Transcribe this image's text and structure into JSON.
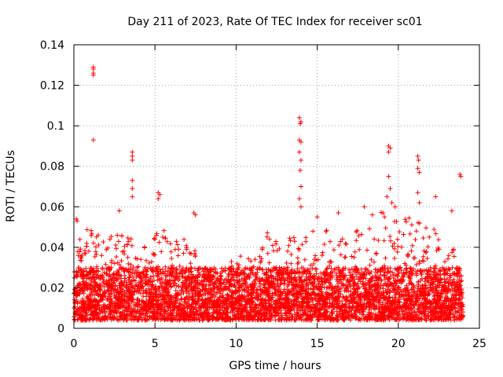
{
  "chart_data": {
    "type": "scatter",
    "title": "Day 211 of 2023, Rate Of TEC Index for receiver sc01",
    "xlabel": "GPS time / hours",
    "ylabel": "ROTI / TECUs",
    "xlim": [
      0,
      25
    ],
    "ylim": [
      0,
      0.14
    ],
    "xticks": [
      "0",
      "5",
      "10",
      "15",
      "20",
      "25"
    ],
    "yticks": [
      "0",
      "0.02",
      "0.04",
      "0.06",
      "0.08",
      "0.1",
      "0.12",
      "0.14"
    ],
    "grid": true,
    "marker": "+",
    "color": "#ff0000",
    "baseline_range": [
      0.004,
      0.03
    ],
    "notable_points": [
      {
        "x": 1.2,
        "y": 0.129
      },
      {
        "x": 1.2,
        "y": 0.128
      },
      {
        "x": 1.2,
        "y": 0.126
      },
      {
        "x": 1.2,
        "y": 0.125
      },
      {
        "x": 1.2,
        "y": 0.093
      },
      {
        "x": 0.15,
        "y": 0.054
      },
      {
        "x": 0.2,
        "y": 0.053
      },
      {
        "x": 2.8,
        "y": 0.058
      },
      {
        "x": 3.6,
        "y": 0.087
      },
      {
        "x": 3.6,
        "y": 0.085
      },
      {
        "x": 3.6,
        "y": 0.083
      },
      {
        "x": 3.6,
        "y": 0.073
      },
      {
        "x": 3.6,
        "y": 0.069
      },
      {
        "x": 3.6,
        "y": 0.065
      },
      {
        "x": 5.2,
        "y": 0.067
      },
      {
        "x": 5.3,
        "y": 0.066
      },
      {
        "x": 5.2,
        "y": 0.064
      },
      {
        "x": 7.4,
        "y": 0.057
      },
      {
        "x": 7.5,
        "y": 0.056
      },
      {
        "x": 13.9,
        "y": 0.104
      },
      {
        "x": 14.0,
        "y": 0.102
      },
      {
        "x": 13.95,
        "y": 0.101
      },
      {
        "x": 13.9,
        "y": 0.093
      },
      {
        "x": 14.0,
        "y": 0.092
      },
      {
        "x": 13.9,
        "y": 0.087
      },
      {
        "x": 14.0,
        "y": 0.083
      },
      {
        "x": 13.95,
        "y": 0.078
      },
      {
        "x": 14.0,
        "y": 0.07
      },
      {
        "x": 13.9,
        "y": 0.064
      },
      {
        "x": 14.0,
        "y": 0.06
      },
      {
        "x": 15.0,
        "y": 0.055
      },
      {
        "x": 16.3,
        "y": 0.057
      },
      {
        "x": 17.9,
        "y": 0.06
      },
      {
        "x": 18.4,
        "y": 0.056
      },
      {
        "x": 19.4,
        "y": 0.09
      },
      {
        "x": 19.5,
        "y": 0.089
      },
      {
        "x": 19.4,
        "y": 0.087
      },
      {
        "x": 19.4,
        "y": 0.075
      },
      {
        "x": 19.5,
        "y": 0.069
      },
      {
        "x": 19.3,
        "y": 0.065
      },
      {
        "x": 19.6,
        "y": 0.062
      },
      {
        "x": 19.8,
        "y": 0.06
      },
      {
        "x": 21.2,
        "y": 0.085
      },
      {
        "x": 21.25,
        "y": 0.083
      },
      {
        "x": 21.2,
        "y": 0.079
      },
      {
        "x": 21.3,
        "y": 0.077
      },
      {
        "x": 21.2,
        "y": 0.067
      },
      {
        "x": 21.3,
        "y": 0.062
      },
      {
        "x": 22.3,
        "y": 0.065
      },
      {
        "x": 23.3,
        "y": 0.058
      },
      {
        "x": 23.8,
        "y": 0.076
      },
      {
        "x": 23.85,
        "y": 0.075
      }
    ],
    "activity_envelope": [
      {
        "x": 0,
        "y": 0.045
      },
      {
        "x": 1,
        "y": 0.05
      },
      {
        "x": 2,
        "y": 0.045
      },
      {
        "x": 3,
        "y": 0.048
      },
      {
        "x": 4,
        "y": 0.042
      },
      {
        "x": 5,
        "y": 0.05
      },
      {
        "x": 6,
        "y": 0.048
      },
      {
        "x": 7,
        "y": 0.046
      },
      {
        "x": 8,
        "y": 0.03
      },
      {
        "x": 9,
        "y": 0.028
      },
      {
        "x": 10,
        "y": 0.035
      },
      {
        "x": 11,
        "y": 0.038
      },
      {
        "x": 12,
        "y": 0.05
      },
      {
        "x": 13,
        "y": 0.045
      },
      {
        "x": 14,
        "y": 0.05
      },
      {
        "x": 15,
        "y": 0.05
      },
      {
        "x": 16,
        "y": 0.052
      },
      {
        "x": 17,
        "y": 0.045
      },
      {
        "x": 18,
        "y": 0.055
      },
      {
        "x": 19,
        "y": 0.058
      },
      {
        "x": 20,
        "y": 0.055
      },
      {
        "x": 21,
        "y": 0.055
      },
      {
        "x": 22,
        "y": 0.05
      },
      {
        "x": 23,
        "y": 0.045
      },
      {
        "x": 24,
        "y": 0.04
      }
    ]
  }
}
